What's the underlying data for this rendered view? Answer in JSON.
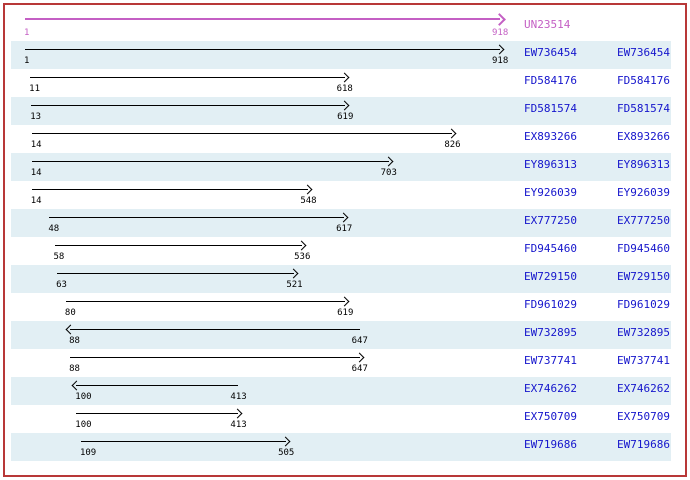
{
  "frame": {
    "border_color": "#b83838"
  },
  "viewer": {
    "shade_color": "#e2eff4",
    "arrow_color": "#000000",
    "link_color": "#1515cc",
    "consensus_color": "#c45fc4",
    "coordinate_min": 1,
    "coordinate_max": 918
  },
  "consensus": {
    "id": "UN23514",
    "start": 1,
    "end": 918,
    "direction": "right"
  },
  "alignments": [
    {
      "id": "EW736454",
      "start": 1,
      "end": 918,
      "direction": "right"
    },
    {
      "id": "FD584176",
      "start": 11,
      "end": 618,
      "direction": "right"
    },
    {
      "id": "FD581574",
      "start": 13,
      "end": 619,
      "direction": "right"
    },
    {
      "id": "EX893266",
      "start": 14,
      "end": 826,
      "direction": "right"
    },
    {
      "id": "EY896313",
      "start": 14,
      "end": 703,
      "direction": "right"
    },
    {
      "id": "EY926039",
      "start": 14,
      "end": 548,
      "direction": "right"
    },
    {
      "id": "EX777250",
      "start": 48,
      "end": 617,
      "direction": "right"
    },
    {
      "id": "FD945460",
      "start": 58,
      "end": 536,
      "direction": "right"
    },
    {
      "id": "EW729150",
      "start": 63,
      "end": 521,
      "direction": "right"
    },
    {
      "id": "FD961029",
      "start": 80,
      "end": 619,
      "direction": "right"
    },
    {
      "id": "EW732895",
      "start": 88,
      "end": 647,
      "direction": "left"
    },
    {
      "id": "EW737741",
      "start": 88,
      "end": 647,
      "direction": "right"
    },
    {
      "id": "EX746262",
      "start": 100,
      "end": 413,
      "direction": "left"
    },
    {
      "id": "EX750709",
      "start": 100,
      "end": 413,
      "direction": "right"
    },
    {
      "id": "EW719686",
      "start": 109,
      "end": 505,
      "direction": "right"
    }
  ]
}
